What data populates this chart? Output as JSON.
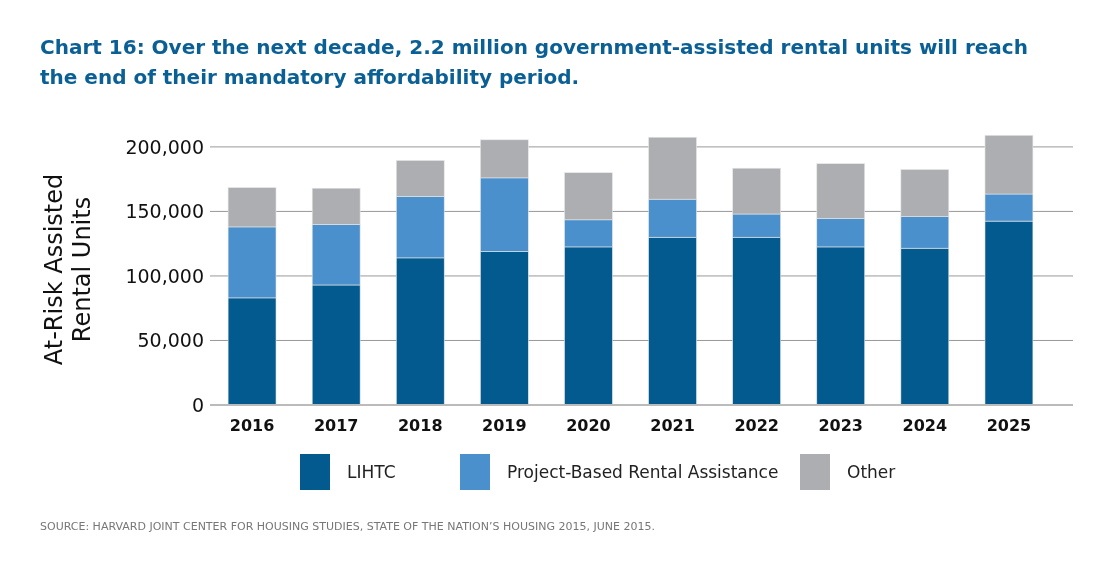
{
  "chart_data": {
    "type": "bar",
    "stacked": true,
    "title": "Chart 16: Over the next decade, 2.2 million government-assisted rental units will reach the end of their mandatory affordability period.",
    "ylabel": "At-Risk Assisted Rental Units",
    "categories": [
      "2016",
      "2017",
      "2018",
      "2019",
      "2020",
      "2021",
      "2022",
      "2023",
      "2024",
      "2025"
    ],
    "series": [
      {
        "name": "LIHTC",
        "color": "#035a8f",
        "values": [
          83000,
          93000,
          114000,
          119000,
          122500,
          130000,
          130000,
          122500,
          121500,
          142500
        ]
      },
      {
        "name": "Project-Based Rental Assistance",
        "color": "#4a90cd",
        "values": [
          55000,
          47000,
          47500,
          57000,
          21000,
          29500,
          18000,
          22000,
          24500,
          21000
        ]
      },
      {
        "name": "Other",
        "color": "#adaeb1",
        "values": [
          30500,
          28000,
          28000,
          29500,
          36500,
          48000,
          35500,
          42500,
          36500,
          45500
        ]
      }
    ],
    "ylim": [
      0,
      210000
    ],
    "yticks": [
      0,
      {
        "value": 50000,
        "label": "50,000"
      },
      {
        "value": 100000,
        "label": "100,000"
      },
      {
        "value": 150000,
        "label": "150,000"
      },
      {
        "value": 200000,
        "label": "200,000"
      }
    ],
    "grid": "y",
    "legend": "bottom",
    "annotations": [
      "SOURCE: HARVARD JOINT CENTER FOR HOUSING STUDIES, STATE OF THE NATION’S HOUSING 2015, JUNE 2015."
    ]
  }
}
